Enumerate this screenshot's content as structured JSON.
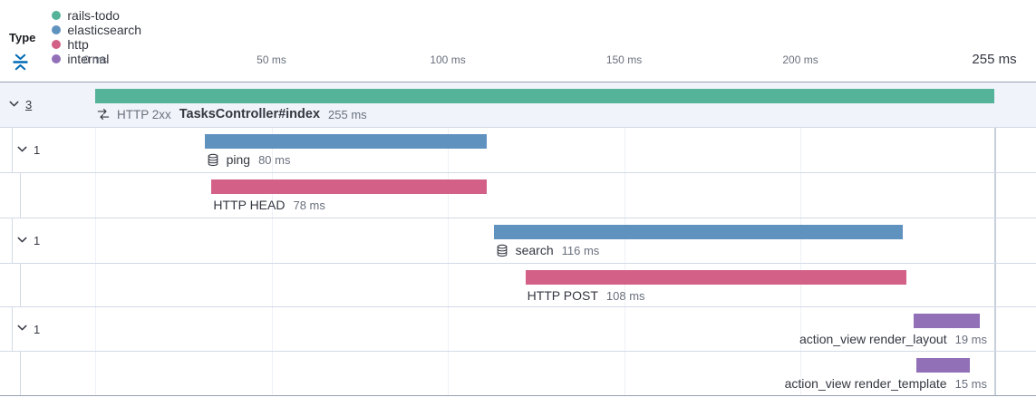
{
  "legend": {
    "title": "Type",
    "items": [
      {
        "label": "rails-todo",
        "color": "#54B399"
      },
      {
        "label": "elasticsearch",
        "color": "#6092C0"
      },
      {
        "label": "http",
        "color": "#D36086"
      },
      {
        "label": "internal",
        "color": "#9170B8"
      }
    ]
  },
  "timeline": {
    "max_ms": 255,
    "ticks": [
      {
        "ms": 0,
        "label": "0 ms"
      },
      {
        "ms": 50,
        "label": "50 ms"
      },
      {
        "ms": 100,
        "label": "100 ms"
      },
      {
        "ms": 150,
        "label": "150 ms"
      },
      {
        "ms": 200,
        "label": "200 ms"
      },
      {
        "ms": 255,
        "label": "255 ms",
        "emphasis": true
      }
    ]
  },
  "colors": {
    "accent_blue": "#006BB4",
    "selected_row_bg": "#f0f4fa",
    "separator": "#d3dae6",
    "strong_border": "#98a2b3"
  },
  "chart_data": {
    "type": "waterfall",
    "x_unit": "ms",
    "x_range": [
      0,
      255
    ],
    "legend_types": [
      "rails-todo",
      "elasticsearch",
      "http",
      "internal"
    ],
    "spans": [
      {
        "name": "TasksController#index",
        "prefix": "HTTP 2xx",
        "type": "rails-todo",
        "start_ms": 0,
        "duration_ms": 255,
        "duration_label": "255 ms",
        "color": "#54B399",
        "level": 0,
        "children_count": "3",
        "count_underline": true,
        "icon": "transaction",
        "selected": true,
        "bold": true,
        "label_align": "left"
      },
      {
        "name": "ping",
        "type": "elasticsearch",
        "start_ms": 31,
        "duration_ms": 80,
        "duration_label": "80 ms",
        "color": "#6092C0",
        "level": 1,
        "children_count": "1",
        "icon": "database",
        "label_align": "left"
      },
      {
        "name": "HTTP HEAD",
        "type": "http",
        "start_ms": 33,
        "duration_ms": 78,
        "duration_label": "78 ms",
        "color": "#D36086",
        "level": 2,
        "label_align": "left"
      },
      {
        "name": "search",
        "type": "elasticsearch",
        "start_ms": 113,
        "duration_ms": 116,
        "duration_label": "116 ms",
        "color": "#6092C0",
        "level": 1,
        "children_count": "1",
        "icon": "database",
        "label_align": "left"
      },
      {
        "name": "HTTP POST",
        "type": "http",
        "start_ms": 122,
        "duration_ms": 108,
        "duration_label": "108 ms",
        "color": "#D36086",
        "level": 2,
        "label_align": "left"
      },
      {
        "name": "action_view render_layout",
        "type": "internal",
        "start_ms": 232,
        "duration_ms": 19,
        "duration_label": "19 ms",
        "color": "#9170B8",
        "level": 1,
        "children_count": "1",
        "label_align": "right"
      },
      {
        "name": "action_view render_template",
        "type": "internal",
        "start_ms": 233,
        "duration_ms": 15,
        "duration_label": "15 ms",
        "color": "#9170B8",
        "level": 2,
        "label_align": "right"
      }
    ]
  }
}
